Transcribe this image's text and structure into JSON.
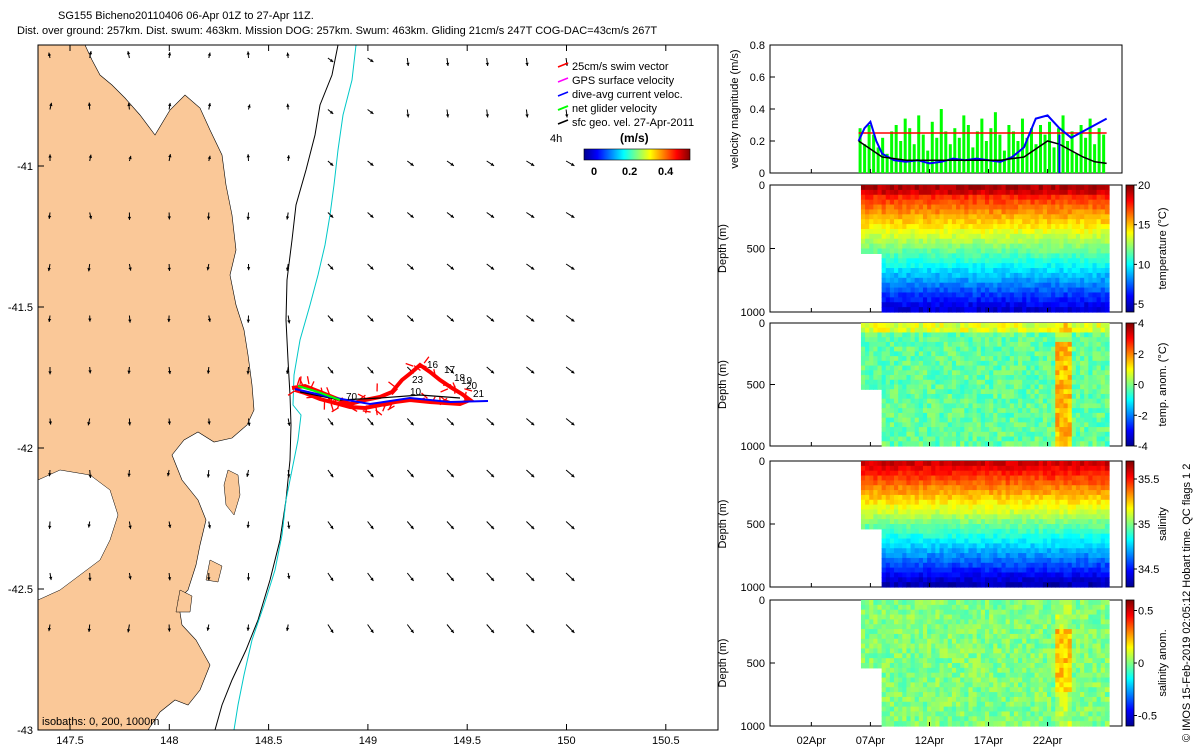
{
  "title": {
    "line1": "SG155 Bicheno20110406 06-Apr 01Z to 27-Apr 11Z.",
    "line2": "Dist. over ground: 257km. Dist. swum: 463km. Mission DOG: 257km. Swum: 463km. Gliding 21cm/s 247T COG-DAC=43cm/s 267T"
  },
  "map": {
    "x_ticks": [
      "147.5",
      "148",
      "148.5",
      "149",
      "149.5",
      "150",
      "150.5"
    ],
    "y_ticks": [
      "-41",
      "-41.5",
      "-42",
      "-42.5",
      "-43"
    ],
    "isobaths_label": "isobaths: 0, 200, 1000m",
    "legend": [
      {
        "label": "25cm/s swim vector",
        "color": "#ff0000"
      },
      {
        "label": "GPS surface velocity",
        "color": "#ff00ff"
      },
      {
        "label": "dive-avg current veloc.",
        "color": "#0000ff"
      },
      {
        "label": "net glider velocity",
        "color": "#00ff00"
      },
      {
        "label": "sfc geo. vel. 27-Apr-2011",
        "color": "#000000"
      }
    ],
    "colorbar": {
      "left_label": "4h",
      "title": "(m/s)",
      "ticks": [
        "0",
        "0.2",
        "0.4"
      ]
    },
    "track_labels": [
      "16",
      "17",
      "18",
      "19",
      "20",
      "21",
      "10",
      "70",
      "23"
    ]
  },
  "chart_data": [
    {
      "type": "line",
      "title": "",
      "ylabel": "velocity magnitude (m/s)",
      "ylim": [
        0,
        0.8
      ],
      "y_ticks": [
        "0",
        "0.2",
        "0.4",
        "0.6",
        "0.8"
      ],
      "x_ticks": [
        "02Apr",
        "07Apr",
        "12Apr",
        "17Apr",
        "22Apr"
      ],
      "series": [
        {
          "name": "swim vector (25cm/s)",
          "color": "#ff0000",
          "x": [
            6,
            27
          ],
          "values": [
            0.25,
            0.25
          ]
        },
        {
          "name": "dive-avg current",
          "color": "#0000ff",
          "x": [
            6,
            6.5,
            7,
            7.5,
            8,
            9,
            10,
            11,
            12,
            13,
            14,
            15,
            16,
            17,
            18,
            19,
            20,
            21,
            22,
            23,
            24,
            25,
            26,
            27
          ],
          "values": [
            0.2,
            0.28,
            0.32,
            0.2,
            0.12,
            0.08,
            0.07,
            0.08,
            0.06,
            0.07,
            0.09,
            0.08,
            0.09,
            0.08,
            0.07,
            0.1,
            0.16,
            0.34,
            0.36,
            0.28,
            0.22,
            0.26,
            0.3,
            0.34
          ]
        },
        {
          "name": "surface geostrophic",
          "color": "#000000",
          "x": [
            6,
            7,
            8,
            10,
            12,
            14,
            16,
            18,
            20,
            21,
            22,
            23,
            24,
            25,
            26,
            27
          ],
          "values": [
            0.2,
            0.15,
            0.1,
            0.08,
            0.08,
            0.08,
            0.08,
            0.08,
            0.1,
            0.15,
            0.2,
            0.18,
            0.14,
            0.1,
            0.07,
            0.06
          ]
        }
      ],
      "bars": {
        "name": "net glider velocity",
        "color": "#00ff00",
        "values": [
          0.28,
          0.18,
          0.3,
          0.24,
          0.16,
          0.22,
          0.12,
          0.26,
          0.3,
          0.2,
          0.34,
          0.28,
          0.18,
          0.36,
          0.24,
          0.14,
          0.32,
          0.22,
          0.4,
          0.26,
          0.18,
          0.28,
          0.22,
          0.36,
          0.3,
          0.16,
          0.26,
          0.34,
          0.2,
          0.28,
          0.38,
          0.24,
          0.14,
          0.3,
          0.26,
          0.2,
          0.34,
          0.22,
          0.28,
          0.18,
          0.3,
          0.24,
          0.32,
          0.16,
          0.28,
          0.36,
          0.2,
          0.26,
          0.12,
          0.3,
          0.22,
          0.34,
          0.18,
          0.28,
          0.24
        ]
      }
    },
    {
      "type": "heatmap",
      "ylabel": "Depth (m)",
      "clabel": "temperature (°C)",
      "y_ticks": [
        "0",
        "500",
        "1000"
      ],
      "cbar_ticks": [
        "20",
        "15",
        "10",
        "5"
      ],
      "clim": [
        4,
        20
      ],
      "variable": "temperature"
    },
    {
      "type": "heatmap",
      "ylabel": "Depth (m)",
      "clabel": "temp. anom. (°C)",
      "y_ticks": [
        "0",
        "500",
        "1000"
      ],
      "cbar_ticks": [
        "4",
        "2",
        "0",
        "-2",
        "-4"
      ],
      "clim": [
        -4,
        4
      ],
      "variable": "temp_anom"
    },
    {
      "type": "heatmap",
      "ylabel": "Depth (m)",
      "clabel": "salinity",
      "y_ticks": [
        "0",
        "500",
        "1000"
      ],
      "cbar_ticks": [
        "35.5",
        "35",
        "34.5"
      ],
      "clim": [
        34.3,
        35.7
      ],
      "variable": "salinity"
    },
    {
      "type": "heatmap",
      "ylabel": "Depth (m)",
      "clabel": "salinity anom.",
      "y_ticks": [
        "0",
        "500",
        "1000"
      ],
      "cbar_ticks": [
        "0.5",
        "0",
        "-0.5"
      ],
      "clim": [
        -0.6,
        0.6
      ],
      "variable": "sal_anom"
    }
  ],
  "footer": {
    "credit": "© IMOS 15-Feb-2019 02:05:12 Hobart time. QC flags 1  2"
  }
}
